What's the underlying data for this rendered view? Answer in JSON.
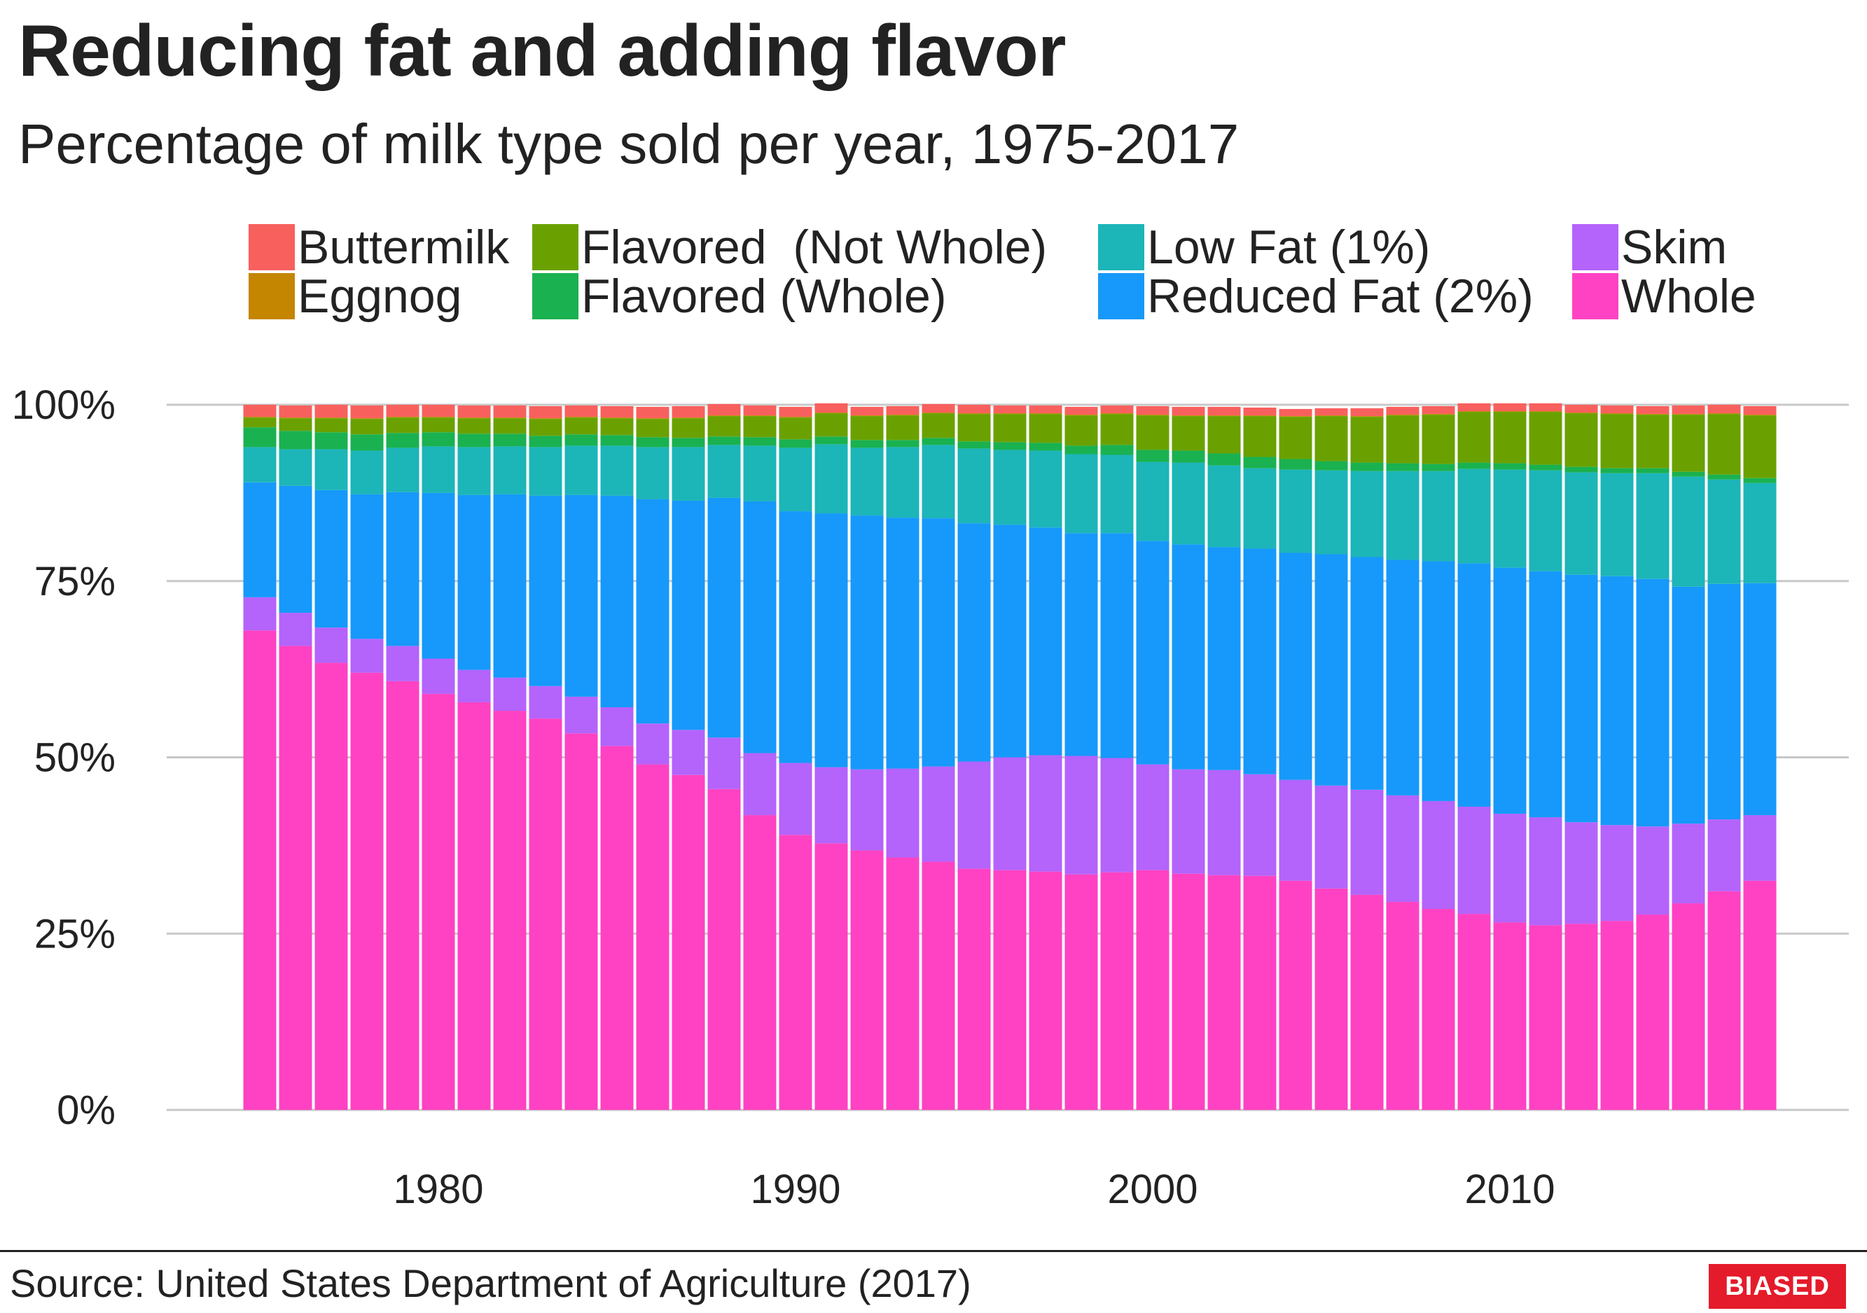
{
  "header": {
    "title": "Reducing fat and adding flavor",
    "subtitle": "Percentage of milk type sold per year, 1975-2017"
  },
  "legend": [
    {
      "label": "Buttermilk",
      "color": "#f8605e"
    },
    {
      "label": "Eggnog",
      "color": "#c48500"
    },
    {
      "label": "Flavored  (Not Whole)",
      "color": "#6aa100"
    },
    {
      "label": "Flavored (Whole)",
      "color": "#1ab150"
    },
    {
      "label": "Low Fat (1%)",
      "color": "#1cb5b8"
    },
    {
      "label": "Reduced Fat (2%)",
      "color": "#1699fa"
    },
    {
      "label": "Skim",
      "color": "#b463fb"
    },
    {
      "label": "Whole",
      "color": "#fe42c3"
    }
  ],
  "footer": {
    "source": "Source: United States Department of Agriculture (2017)",
    "logo_text": "BIASED"
  },
  "chart_data": {
    "type": "bar",
    "stacked": true,
    "title": "Reducing fat and adding flavor",
    "subtitle": "Percentage of milk type sold per year, 1975-2017",
    "xlabel": "",
    "ylabel": "",
    "ylim": [
      0,
      100
    ],
    "y_ticks": [
      "0%",
      "25%",
      "50%",
      "75%",
      "100%"
    ],
    "x_ticks": [
      "1980",
      "1990",
      "2000",
      "2010"
    ],
    "grid": "horizontal",
    "legend_position": "top",
    "categories": [
      1975,
      1976,
      1977,
      1978,
      1979,
      1980,
      1981,
      1982,
      1983,
      1984,
      1985,
      1986,
      1987,
      1988,
      1989,
      1990,
      1991,
      1992,
      1993,
      1994,
      1995,
      1996,
      1997,
      1998,
      1999,
      2000,
      2001,
      2002,
      2003,
      2004,
      2005,
      2006,
      2007,
      2008,
      2009,
      2010,
      2011,
      2012,
      2013,
      2014,
      2015,
      2016,
      2017
    ],
    "series": [
      {
        "name": "Whole",
        "color": "#fe42c3",
        "values": [
          68.0,
          65.8,
          63.4,
          62.0,
          60.8,
          59.0,
          57.8,
          56.6,
          55.5,
          53.4,
          51.6,
          49.0,
          47.5,
          45.5,
          41.8,
          39.0,
          37.8,
          36.8,
          35.8,
          35.2,
          34.2,
          34.0,
          33.8,
          33.4,
          33.7,
          34.0,
          33.5,
          33.3,
          33.2,
          32.5,
          31.4,
          30.5,
          29.5,
          28.5,
          27.8,
          26.6,
          26.2,
          26.4,
          26.8,
          27.7,
          29.3,
          31.0,
          32.5
        ]
      },
      {
        "name": "Skim",
        "color": "#b463fb",
        "values": [
          4.7,
          4.7,
          5.0,
          4.8,
          5.0,
          5.0,
          4.6,
          4.7,
          4.6,
          5.2,
          5.5,
          5.8,
          6.4,
          7.3,
          8.8,
          10.2,
          10.8,
          11.5,
          12.6,
          13.5,
          15.2,
          16.0,
          16.5,
          16.8,
          16.2,
          15.0,
          14.8,
          14.9,
          14.4,
          14.3,
          14.6,
          14.9,
          15.1,
          15.3,
          15.2,
          15.4,
          15.3,
          14.4,
          13.6,
          12.5,
          11.3,
          10.2,
          9.3
        ]
      },
      {
        "name": "Reduced Fat (2%)",
        "color": "#1699fa",
        "values": [
          16.3,
          18.0,
          19.5,
          20.5,
          21.8,
          23.5,
          24.8,
          26.0,
          27.0,
          28.6,
          30.0,
          31.8,
          32.5,
          34.0,
          35.7,
          35.7,
          36.0,
          36.0,
          35.6,
          35.2,
          33.8,
          33.0,
          32.3,
          31.6,
          31.9,
          31.7,
          31.9,
          31.6,
          32.0,
          32.2,
          32.8,
          33.0,
          33.4,
          34.0,
          34.5,
          34.9,
          34.9,
          35.1,
          35.3,
          35.1,
          33.6,
          33.4,
          32.9
        ]
      },
      {
        "name": "Low Fat (1%)",
        "color": "#1cb5b8",
        "values": [
          5.0,
          5.2,
          5.8,
          6.2,
          6.3,
          6.6,
          6.8,
          6.8,
          6.9,
          7.0,
          7.1,
          7.4,
          7.6,
          7.5,
          7.9,
          9.0,
          9.8,
          9.6,
          10.0,
          10.4,
          10.6,
          10.6,
          10.9,
          11.2,
          11.1,
          11.2,
          11.6,
          11.6,
          11.4,
          11.8,
          11.9,
          12.2,
          12.6,
          12.8,
          13.4,
          13.9,
          14.3,
          14.5,
          14.6,
          15.0,
          15.6,
          14.8,
          14.2
        ]
      },
      {
        "name": "Flavored (Whole)",
        "color": "#1ab150",
        "values": [
          2.8,
          2.6,
          2.4,
          2.3,
          2.1,
          2.0,
          1.9,
          1.8,
          1.6,
          1.6,
          1.5,
          1.4,
          1.3,
          1.2,
          1.2,
          1.2,
          1.1,
          1.1,
          1.0,
          1.0,
          1.0,
          1.1,
          1.1,
          1.2,
          1.4,
          1.7,
          1.7,
          1.7,
          1.6,
          1.5,
          1.3,
          1.2,
          1.1,
          1.0,
          0.9,
          0.9,
          0.8,
          0.8,
          0.7,
          0.7,
          0.7,
          0.7,
          0.7
        ]
      },
      {
        "name": "Flavored  (Not Whole)",
        "color": "#6aa100",
        "values": [
          1.4,
          1.8,
          2.0,
          2.2,
          2.2,
          2.1,
          2.2,
          2.2,
          2.4,
          2.4,
          2.4,
          2.6,
          2.8,
          2.9,
          3.0,
          3.1,
          3.3,
          3.4,
          3.5,
          3.5,
          3.9,
          4.0,
          4.1,
          4.3,
          4.4,
          4.9,
          4.9,
          5.3,
          5.8,
          6.0,
          6.4,
          6.5,
          6.8,
          7.0,
          7.2,
          7.3,
          7.5,
          7.6,
          7.7,
          7.6,
          8.1,
          8.6,
          8.9
        ]
      },
      {
        "name": "Eggnog",
        "color": "#c48500",
        "values": [
          0.1,
          0.1,
          0.1,
          0.1,
          0.1,
          0.1,
          0.1,
          0.1,
          0.1,
          0.1,
          0.1,
          0.1,
          0.1,
          0.1,
          0.1,
          0.1,
          0.1,
          0.1,
          0.1,
          0.1,
          0.1,
          0.1,
          0.1,
          0.1,
          0.1,
          0.1,
          0.1,
          0.1,
          0.1,
          0.1,
          0.1,
          0.1,
          0.1,
          0.1,
          0.1,
          0.1,
          0.1,
          0.1,
          0.1,
          0.1,
          0.1,
          0.1,
          0.1
        ]
      },
      {
        "name": "Buttermilk",
        "color": "#f8605e",
        "values": [
          1.7,
          1.7,
          1.8,
          1.8,
          1.7,
          1.7,
          1.7,
          1.7,
          1.7,
          1.6,
          1.6,
          1.6,
          1.6,
          1.6,
          1.4,
          1.4,
          1.3,
          1.2,
          1.2,
          1.2,
          1.2,
          1.1,
          1.1,
          1.1,
          1.1,
          1.2,
          1.2,
          1.2,
          1.1,
          1.0,
          1.0,
          1.1,
          1.1,
          1.1,
          1.1,
          1.1,
          1.1,
          1.1,
          1.1,
          1.1,
          1.2,
          1.2,
          1.2
        ]
      }
    ]
  }
}
